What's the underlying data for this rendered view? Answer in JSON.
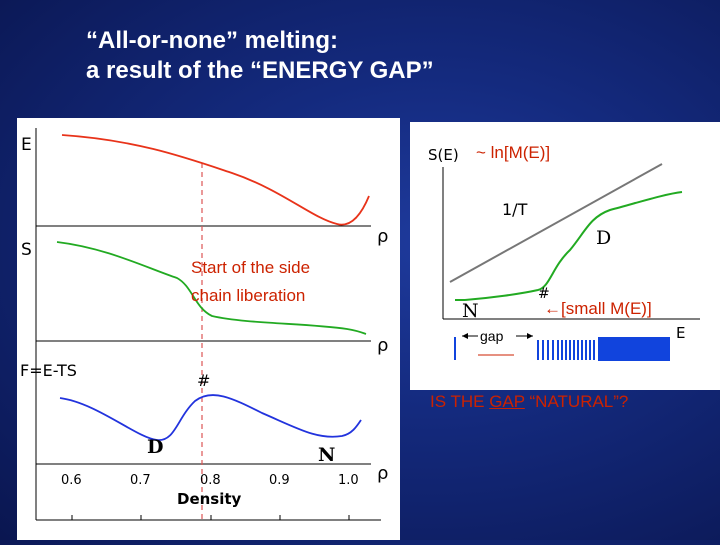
{
  "title": {
    "line1": "“All-or-none” melting:",
    "line2": "a result of the “ENERGY GAP”"
  },
  "left_figure": {
    "panels": {
      "energy": {
        "label": "E",
        "axis_end_label": "ρ"
      },
      "entropy": {
        "label": "S",
        "axis_end_label": "ρ"
      },
      "free_energy": {
        "label": "F=E-TS",
        "axis_end_label": "ρ"
      }
    },
    "annotation": {
      "line1": "Start of the side",
      "line2": "chain liberation"
    },
    "hash_mark": "#",
    "state_labels": {
      "denatured": "D",
      "native": "N"
    },
    "x_ticks": [
      "0.6",
      "0.7",
      "0.8",
      "0.9",
      "1.0"
    ],
    "xlabel": "Density"
  },
  "right_figure": {
    "s_label": "S(E)",
    "tilde_label": "~ ln[M(E)]",
    "slope_label": "1/T",
    "d_label": "D",
    "n_label": "N",
    "hash_mark": "#",
    "small_me_label": "←[small M(E)]",
    "gap_label": "gap",
    "e_label": "E"
  },
  "question": {
    "before": "IS THE ",
    "gap_word": "GAP",
    "after": " “NATURAL”?"
  },
  "colors": {
    "energy_curve": "#e8331a",
    "entropy_curve": "#22aa22",
    "free_energy_curve": "#2233dd",
    "dashed_marker": "#dd5555",
    "annotation_text": "#cc2200",
    "tangent_line": "#777777",
    "spectrum_bars": "#1144dd"
  }
}
